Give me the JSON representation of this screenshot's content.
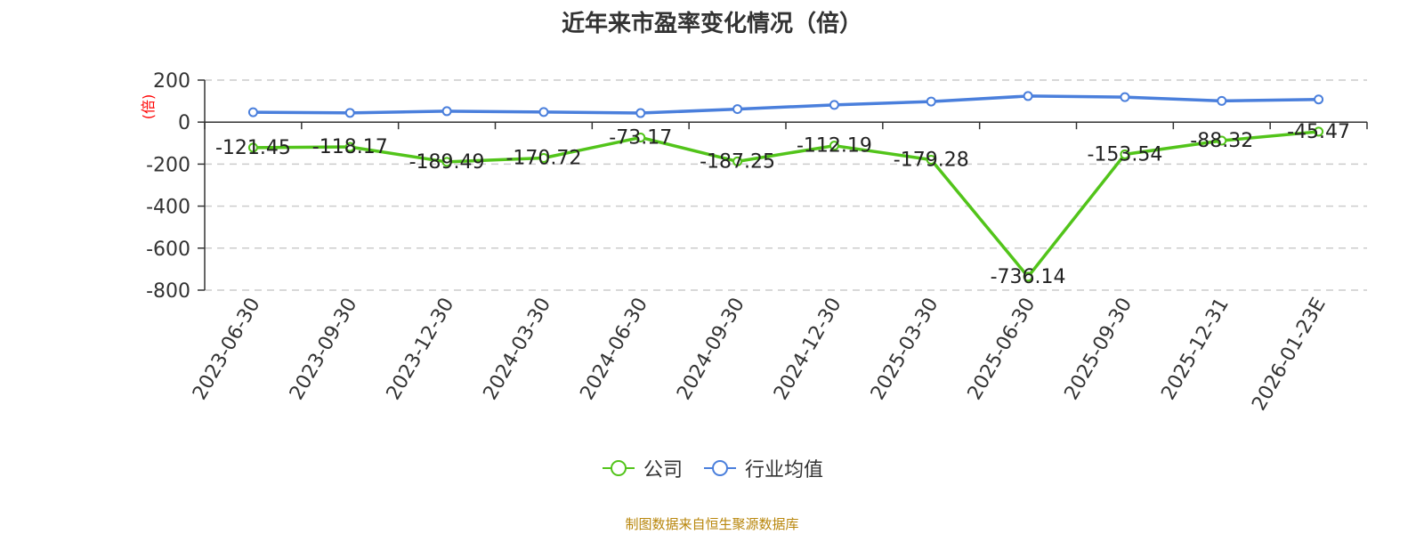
{
  "chart_data": {
    "type": "line",
    "title": "近年来市盈率变化情况（倍）",
    "ylabel": "(倍)",
    "categories": [
      "2023-06-30",
      "2023-09-30",
      "2023-12-30",
      "2024-03-30",
      "2024-06-30",
      "2024-09-30",
      "2024-12-30",
      "2025-03-30",
      "2025-06-30",
      "2025-09-30",
      "2025-12-31",
      "2026-01-23E"
    ],
    "yticks": [
      200,
      0,
      -200,
      -400,
      -600,
      -800
    ],
    "ylim": [
      -800,
      200
    ],
    "grid": true,
    "legend_position": "bottom",
    "series": [
      {
        "name": "公司",
        "color": "#52c41a",
        "show_labels": true,
        "values": [
          -121.45,
          -118.17,
          -189.49,
          -170.72,
          -73.17,
          -187.25,
          -112.19,
          -179.28,
          -736.14,
          -153.54,
          -88.32,
          -45.47
        ],
        "labels": [
          "-121.45",
          "-118.17",
          "-189.49",
          "-170.72",
          "-73.17",
          "-187.25",
          "-112.19",
          "-179.28",
          "-736.14",
          "-153.54",
          "-88.32",
          "-45.47"
        ]
      },
      {
        "name": "行业均值",
        "color": "#4a7fdc",
        "show_labels": false,
        "values": [
          47,
          44,
          52,
          48,
          43,
          62,
          82,
          98,
          124,
          119,
          101,
          108
        ]
      }
    ],
    "source": "制图数据来自恒生聚源数据库"
  }
}
